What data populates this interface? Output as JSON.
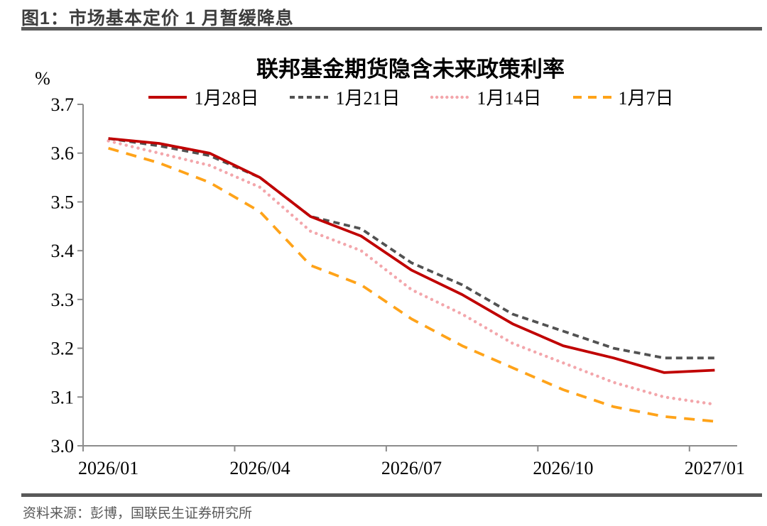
{
  "page": {
    "header_title": "图1：市场基本定价 1 月暂缓降息",
    "source_note": "资料来源：彭博，国联民生证券研究所",
    "rule_color": "#595959",
    "header_text_color": "#3d3d3d"
  },
  "chart_data": {
    "type": "line",
    "title": "联邦基金期货隐含未来政策利率",
    "unit_label": "%",
    "xlabel": "",
    "ylabel": "%",
    "grid": false,
    "legend_position": "top",
    "ylim": [
      3.0,
      3.7
    ],
    "y_ticks": [
      3.0,
      3.1,
      3.2,
      3.3,
      3.4,
      3.5,
      3.6,
      3.7
    ],
    "x": [
      "2026/01",
      "2026/02",
      "2026/03",
      "2026/04",
      "2026/05",
      "2026/06",
      "2026/07",
      "2026/08",
      "2026/09",
      "2026/10",
      "2026/11",
      "2026/12",
      "2027/01"
    ],
    "x_tick_labels": [
      "2026/01",
      "2026/04",
      "2026/07",
      "2026/10",
      "2027/01"
    ],
    "axis_color": "#8c8c8c",
    "series": [
      {
        "name": "1月28日",
        "color": "#C00000",
        "line_style": "solid",
        "values": [
          3.63,
          3.62,
          3.6,
          3.55,
          3.47,
          3.43,
          3.36,
          3.31,
          3.25,
          3.205,
          3.18,
          3.15,
          3.155
        ]
      },
      {
        "name": "1月21日",
        "color": "#525252",
        "line_style": "dashed",
        "values": [
          3.63,
          3.615,
          3.595,
          3.55,
          3.47,
          3.445,
          3.375,
          3.33,
          3.27,
          3.235,
          3.2,
          3.18,
          3.18
        ]
      },
      {
        "name": "1月14日",
        "color": "#F3A6AB",
        "line_style": "dotted",
        "values": [
          3.625,
          3.6,
          3.575,
          3.53,
          3.44,
          3.4,
          3.32,
          3.27,
          3.21,
          3.17,
          3.13,
          3.1,
          3.085
        ]
      },
      {
        "name": "1月7日",
        "color": "#FFA319",
        "line_style": "long-dash",
        "values": [
          3.61,
          3.58,
          3.54,
          3.48,
          3.37,
          3.33,
          3.26,
          3.205,
          3.16,
          3.115,
          3.08,
          3.06,
          3.05
        ]
      }
    ]
  }
}
